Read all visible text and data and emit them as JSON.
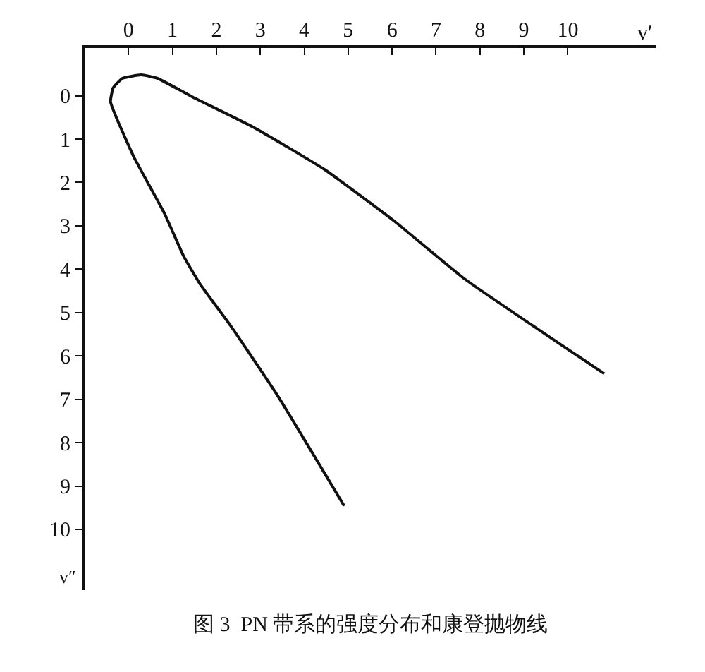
{
  "chart_data": {
    "type": "line",
    "title": "图 3  PN 带系的强度分布和康登抛物线",
    "xlabel": "v′",
    "ylabel": "v″",
    "xlim": [
      -1.0,
      12.0
    ],
    "ylim": [
      11.4,
      -1.1
    ],
    "xticks": [
      0,
      1,
      2,
      3,
      4,
      5,
      6,
      7,
      8,
      9,
      10
    ],
    "yticks": [
      0,
      1,
      2,
      3,
      4,
      5,
      6,
      7,
      8,
      9,
      10
    ],
    "marker": "none",
    "line_style": "solid",
    "series": [
      {
        "color": "#111111",
        "x": [
          4.91,
          3.39,
          2.32,
          1.62,
          1.25,
          0.82,
          0.13,
          -0.25,
          -0.41,
          -0.35,
          -0.14,
          0.29,
          0.66,
          1.46,
          2.85,
          4.46,
          6.06,
          7.66,
          10.83
        ],
        "values": [
          9.46,
          6.91,
          5.3,
          4.33,
          3.69,
          2.72,
          1.43,
          0.57,
          0.14,
          -0.18,
          -0.4,
          -0.48,
          -0.4,
          0.03,
          0.73,
          1.7,
          2.9,
          4.23,
          6.41
        ]
      }
    ]
  }
}
